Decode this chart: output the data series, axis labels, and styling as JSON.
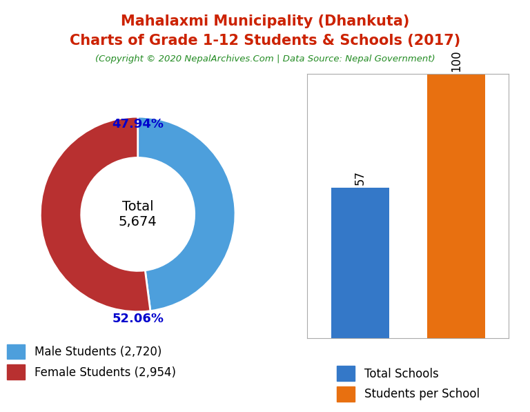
{
  "title_line1": "Mahalaxmi Municipality (Dhankuta)",
  "title_line2": "Charts of Grade 1-12 Students & Schools (2017)",
  "copyright": "(Copyright © 2020 NepalArchives.Com | Data Source: Nepal Government)",
  "title_color": "#cc2200",
  "copyright_color": "#228B22",
  "male_students": 2720,
  "female_students": 2954,
  "total_students": 5674,
  "male_pct": 47.94,
  "female_pct": 52.06,
  "male_color": "#4d9fdc",
  "female_color": "#b83030",
  "donut_center_label": "Total\n5,674",
  "bar_categories": [
    "Total Schools",
    "Students per School"
  ],
  "bar_values": [
    57,
    100
  ],
  "bar_colors": [
    "#3478c8",
    "#e87010"
  ],
  "bar_label_color": "black",
  "legend_fontsize": 12,
  "pct_color": "#0000cc",
  "background_color": "#ffffff"
}
